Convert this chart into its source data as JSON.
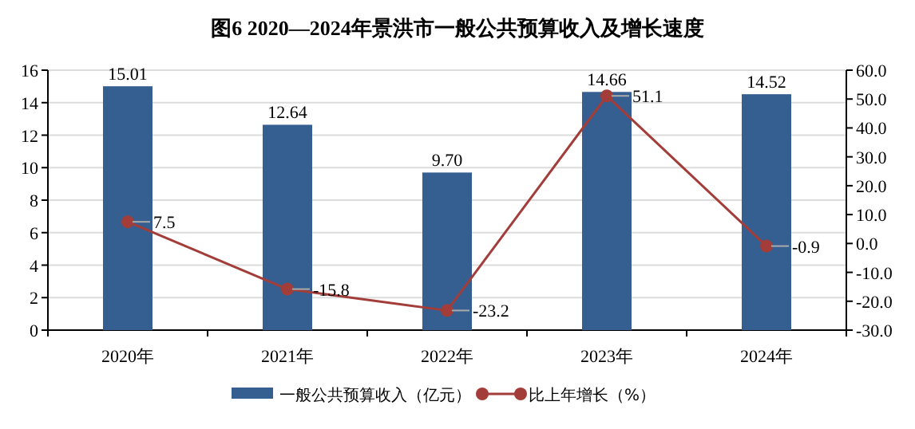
{
  "chart_data": {
    "type": "bar",
    "title": "图6 2020—2024年景洪市一般公共预算收入及增长速度",
    "categories": [
      "2020年",
      "2021年",
      "2022年",
      "2023年",
      "2024年"
    ],
    "series": [
      {
        "name": "一般公共预算收入（亿元）",
        "color": "#365f91",
        "values": [
          15.01,
          12.64,
          9.7,
          14.66,
          14.52
        ],
        "value_labels": [
          "15.01",
          "12.64",
          "9.70",
          "14.66",
          "14.52"
        ]
      },
      {
        "name": "比上年增长（%）",
        "type": "line",
        "axis": "y2",
        "color": "#a33d3a",
        "values": [
          7.5,
          -15.8,
          -23.2,
          51.1,
          -0.9
        ],
        "value_labels": [
          "7.5",
          "-15.8",
          "-23.2",
          "51.1",
          "-0.9"
        ]
      }
    ],
    "ylim": [
      0,
      16
    ],
    "yticks": [
      0,
      2,
      4,
      6,
      8,
      10,
      12,
      14,
      16
    ],
    "y2lim": [
      -30,
      60
    ],
    "y2ticks": [
      {
        "value": -30,
        "label": "-30.0"
      },
      {
        "value": -20,
        "label": "-20.0"
      },
      {
        "value": -10,
        "label": "-10.0"
      },
      {
        "value": 0,
        "label": "0.0"
      },
      {
        "value": 10,
        "label": "10.0"
      },
      {
        "value": 20,
        "label": "20.0"
      },
      {
        "value": 30,
        "label": "30.0"
      },
      {
        "value": 40,
        "label": "40.0"
      },
      {
        "value": 50,
        "label": "50.0"
      },
      {
        "value": 60,
        "label": "60.0"
      }
    ],
    "grid": "y",
    "legend": "bottom",
    "marker": "circle"
  }
}
